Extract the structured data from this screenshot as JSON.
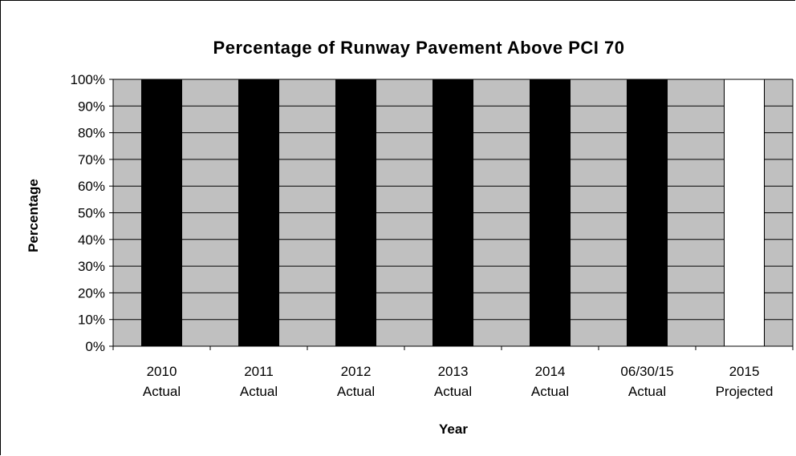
{
  "chart_data": {
    "type": "bar",
    "title": "Percentage of Runway Pavement Above PCI 70",
    "xlabel": "Year",
    "ylabel": "Percentage",
    "ylim": [
      0,
      1
    ],
    "yticks": [
      "0%",
      "10%",
      "20%",
      "30%",
      "40%",
      "50%",
      "60%",
      "70%",
      "80%",
      "90%",
      "100%"
    ],
    "grid": true,
    "legend": "none",
    "plot_background": "#c0c0c0",
    "categories": [
      [
        "2010",
        "Actual"
      ],
      [
        "2011",
        "Actual"
      ],
      [
        "2012",
        "Actual"
      ],
      [
        "2013",
        "Actual"
      ],
      [
        "2014",
        "Actual"
      ],
      [
        "06/30/15",
        "Actual"
      ],
      [
        "2015",
        "Projected"
      ]
    ],
    "values": [
      1.0,
      1.0,
      1.0,
      1.0,
      1.0,
      1.0,
      1.0
    ],
    "bar_colors": [
      "#000000",
      "#000000",
      "#000000",
      "#000000",
      "#000000",
      "#000000",
      "#ffffff"
    ]
  }
}
